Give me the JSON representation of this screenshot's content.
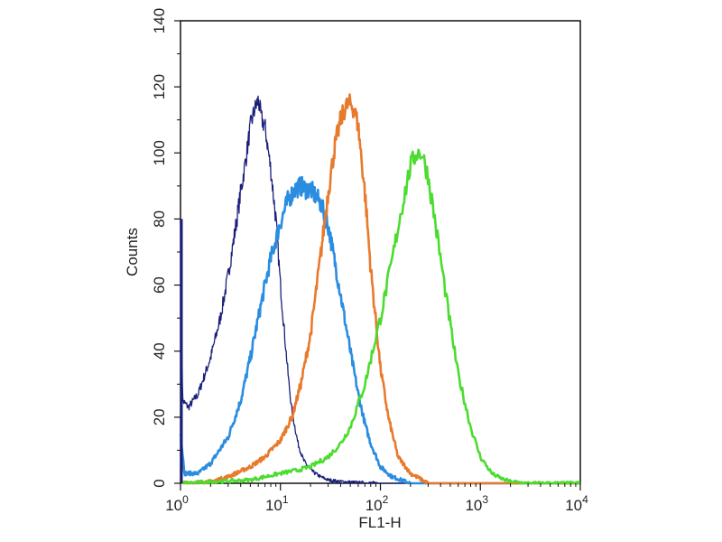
{
  "chart_data": {
    "type": "line",
    "title": "",
    "xlabel": "FL1-H",
    "ylabel": "Counts",
    "x_scale": "log",
    "xlim": [
      1,
      10000
    ],
    "ylim": [
      0,
      140
    ],
    "x_ticks": [
      {
        "value": 1,
        "base": "10",
        "exp": "0"
      },
      {
        "value": 10,
        "base": "10",
        "exp": "1"
      },
      {
        "value": 100,
        "base": "10",
        "exp": "2"
      },
      {
        "value": 1000,
        "base": "10",
        "exp": "3"
      },
      {
        "value": 10000,
        "base": "10",
        "exp": "4"
      }
    ],
    "y_ticks": [
      "0",
      "20",
      "40",
      "60",
      "80",
      "100",
      "120",
      "140"
    ],
    "grid": false,
    "legend": "none",
    "series": [
      {
        "color": "#1a1f7a",
        "stroke_width": 1.3,
        "x": [
          1.0,
          1.05,
          1.2,
          1.5,
          2,
          2.5,
          3,
          3.5,
          4,
          4.5,
          5,
          5.5,
          6,
          6.5,
          7,
          8,
          9,
          10,
          11,
          12,
          13,
          15,
          17,
          20,
          25,
          30,
          40,
          60,
          100
        ],
        "y": [
          80,
          25,
          23,
          27,
          38,
          50,
          63,
          76,
          88,
          98,
          108,
          113,
          116,
          110,
          108,
          95,
          80,
          60,
          45,
          32,
          22,
          12,
          7,
          4,
          2,
          1,
          0.5,
          0.2,
          0
        ]
      },
      {
        "color": "#2b8de0",
        "stroke_width": 2.6,
        "x": [
          1.0,
          1.1,
          1.5,
          2,
          3,
          4,
          5,
          6,
          7,
          8,
          10,
          12,
          14,
          16,
          18,
          20,
          25,
          30,
          35,
          40,
          50,
          60,
          70,
          80,
          100,
          130,
          200
        ],
        "y": [
          15,
          3,
          3,
          6,
          14,
          25,
          38,
          50,
          60,
          68,
          79,
          86,
          89,
          90,
          89,
          89,
          85,
          78,
          67,
          57,
          40,
          27,
          18,
          12,
          5,
          2,
          0
        ]
      },
      {
        "color": "#e87a2d",
        "stroke_width": 2.6,
        "x": [
          1,
          2,
          3,
          5,
          7,
          10,
          13,
          16,
          20,
          25,
          30,
          35,
          40,
          45,
          50,
          55,
          60,
          70,
          80,
          100,
          120,
          150,
          200,
          300
        ],
        "y": [
          0,
          0.5,
          2,
          5,
          8,
          13,
          20,
          30,
          45,
          68,
          88,
          102,
          110,
          114,
          115,
          113,
          108,
          88,
          65,
          35,
          20,
          8,
          3,
          0
        ]
      },
      {
        "color": "#4cdc2f",
        "stroke_width": 2.6,
        "x": [
          1,
          5,
          10,
          15,
          20,
          30,
          40,
          50,
          70,
          100,
          130,
          160,
          200,
          230,
          260,
          300,
          350,
          400,
          500,
          600,
          800,
          1000,
          1300,
          1600,
          2000,
          3000,
          10000
        ],
        "y": [
          0,
          1,
          3,
          4,
          5,
          8,
          12,
          17,
          30,
          50,
          67,
          82,
          96,
          100,
          100,
          93,
          80,
          68,
          48,
          33,
          17,
          8,
          3,
          1.5,
          0.5,
          0,
          0
        ]
      }
    ]
  }
}
